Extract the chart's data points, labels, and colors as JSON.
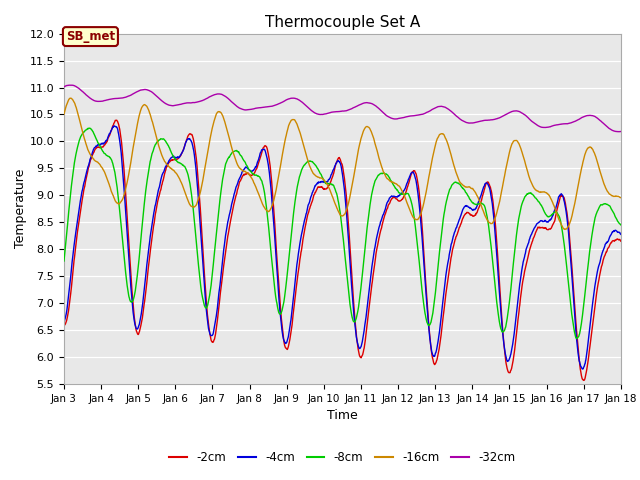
{
  "title": "Thermocouple Set A",
  "xlabel": "Time",
  "ylabel": "Temperature",
  "ylim": [
    5.5,
    12.0
  ],
  "yticks": [
    5.5,
    6.0,
    6.5,
    7.0,
    7.5,
    8.0,
    8.5,
    9.0,
    9.5,
    10.0,
    10.5,
    11.0,
    11.5,
    12.0
  ],
  "colors": {
    "-2cm": "#dd0000",
    "-4cm": "#0000dd",
    "-8cm": "#00cc00",
    "-16cm": "#cc8800",
    "-32cm": "#aa00aa"
  },
  "legend_labels": [
    "-2cm",
    "-4cm",
    "-8cm",
    "-16cm",
    "-32cm"
  ],
  "annotation_text": "SB_met",
  "annotation_color": "#8B0000",
  "annotation_bg": "#ffffcc",
  "x_start": 3,
  "x_end": 18,
  "xtick_positions": [
    3,
    4,
    5,
    6,
    7,
    8,
    9,
    10,
    11,
    12,
    13,
    14,
    15,
    16,
    17,
    18
  ],
  "xtick_labels": [
    "Jan 3",
    "Jan 4",
    "Jan 5",
    "Jan 6",
    "Jan 7",
    "Jan 8",
    "Jan 9",
    "Jan 10",
    "Jan 11",
    "Jan 12",
    "Jan 13",
    "Jan 14",
    "Jan 15",
    "Jan 16",
    "Jan 17",
    "Jan 18"
  ]
}
